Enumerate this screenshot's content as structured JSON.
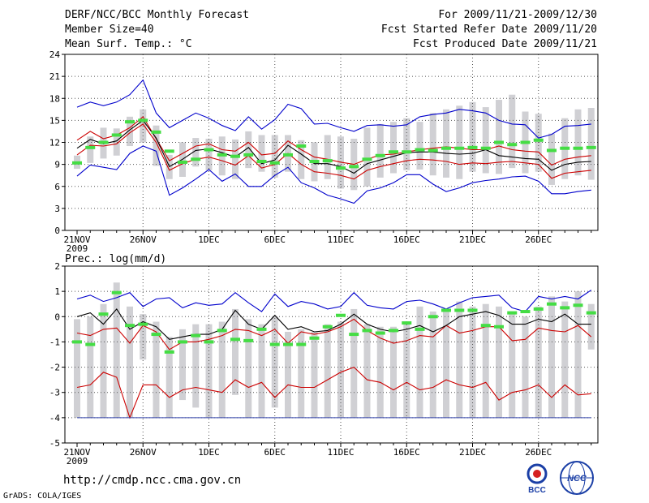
{
  "header": {
    "title": "DERF/NCC/BCC Monthly Forecast",
    "member_size": "Member Size=40",
    "variable_label": "Mean Surf. Temp.: °C",
    "forecast_period": "For 2009/11/21-2009/12/30",
    "fcst_started": "Fcst Started Refer Date 2009/11/20",
    "fcst_produced": "Fcst Produced Date 2009/11/21"
  },
  "footer": {
    "url": "http://cmdp.ncc.cma.gov.cn",
    "grads_credit": "GrADS: COLA/IGES",
    "bcc_logo_text": "BCC",
    "ncc_logo_text": "NCC"
  },
  "colors": {
    "max": "#0000cc",
    "min_pct": "#cc0000",
    "mean": "#000000",
    "obs": "#44dd44",
    "box": "#d0d0d4"
  },
  "chart_data": [
    {
      "type": "line",
      "title": "Mean Surf. Temp.: °C",
      "ylim": [
        0,
        24
      ],
      "yticks": [
        0,
        3,
        6,
        9,
        12,
        15,
        18,
        21,
        24
      ],
      "xtick_labels": [
        "21NOV",
        "26NOV",
        "1DEC",
        "6DEC",
        "11DEC",
        "16DEC",
        "21DEC",
        "26DEC"
      ],
      "xtick_index": [
        0,
        5,
        10,
        15,
        20,
        25,
        30,
        35
      ],
      "x_sublabel": "2009",
      "series": [
        {
          "name": "max",
          "color": "#0000cc",
          "values": [
            16.8,
            17.5,
            17,
            17.5,
            18.5,
            20.5,
            16,
            14,
            15,
            16,
            15.3,
            14.3,
            13.6,
            15.5,
            13.8,
            15.1,
            17.2,
            16.6,
            14.5,
            14.6,
            14,
            13.5,
            14.3,
            14.4,
            14.2,
            14.4,
            15.5,
            15.8,
            16,
            16.5,
            16.3,
            16,
            15,
            14.5,
            14.4,
            12.6,
            13.1,
            14.2,
            14.3,
            14.5
          ]
        },
        {
          "name": "upper",
          "color": "#cc0000",
          "values": [
            12.3,
            13.5,
            12.5,
            13,
            14,
            15.5,
            12.5,
            9.5,
            10.5,
            11.5,
            11.8,
            11,
            10.8,
            12,
            10.3,
            10.5,
            12.2,
            11,
            10,
            9.7,
            9.3,
            9,
            9.7,
            10.3,
            10.4,
            10.7,
            11,
            11.2,
            11.4,
            11.2,
            11,
            11,
            11.5,
            11,
            10.8,
            10.7,
            8.9,
            9.7,
            10,
            10.2
          ]
        },
        {
          "name": "mean",
          "color": "#000000",
          "values": [
            11.2,
            12.4,
            11.8,
            12.2,
            13.7,
            15,
            12.6,
            8.7,
            9.7,
            10.9,
            11.1,
            10.6,
            10,
            11.3,
            9.1,
            9.6,
            11.6,
            10.4,
            9.1,
            9.1,
            8.7,
            7.8,
            9.1,
            9.6,
            10.1,
            10.6,
            10.7,
            10.7,
            10.5,
            10.4,
            10.5,
            11,
            10.2,
            10,
            9.8,
            9.7,
            8.2,
            9,
            9.3,
            9.4
          ]
        },
        {
          "name": "lower",
          "color": "#cc0000",
          "values": [
            10.3,
            11.6,
            11.5,
            11.8,
            13.3,
            14.5,
            12,
            8.2,
            9.1,
            9.7,
            10,
            9.5,
            8.9,
            10.2,
            8.5,
            9,
            10.5,
            9,
            8,
            7.8,
            7.5,
            7,
            8.2,
            8.7,
            9.1,
            9.5,
            9.7,
            9.6,
            9.4,
            9,
            9.2,
            9.1,
            9.3,
            9.4,
            9.2,
            9,
            7.1,
            7.8,
            8,
            8.2
          ]
        },
        {
          "name": "min",
          "color": "#0000cc",
          "values": [
            7.4,
            8.9,
            8.6,
            8.3,
            10.5,
            11.5,
            10.8,
            4.8,
            5.8,
            7,
            8.3,
            6.7,
            7.7,
            6,
            6,
            7.5,
            8.6,
            6.5,
            5.8,
            4.8,
            4.3,
            3.7,
            5.4,
            5.8,
            6.5,
            7.6,
            7.6,
            6.3,
            5.3,
            5.8,
            6.5,
            6.8,
            7,
            7.3,
            7.4,
            6.7,
            5,
            5,
            5.3,
            5.5
          ]
        }
      ],
      "boxes": [
        [
          8.4,
          10.2
        ],
        [
          9.2,
          12.8
        ],
        [
          9.8,
          14
        ],
        [
          10.2,
          13.9
        ],
        [
          11.5,
          15.5
        ],
        [
          12,
          16.5
        ],
        [
          8.8,
          14.3
        ],
        [
          7,
          10.3
        ],
        [
          7.3,
          12
        ],
        [
          8.7,
          12.6
        ],
        [
          8.2,
          12.5
        ],
        [
          7.5,
          12.8
        ],
        [
          7,
          12.4
        ],
        [
          8.5,
          13.5
        ],
        [
          8,
          13
        ],
        [
          7.2,
          13
        ],
        [
          8,
          13
        ],
        [
          7,
          12.3
        ],
        [
          6.7,
          12
        ],
        [
          7,
          13
        ],
        [
          5.7,
          12.8
        ],
        [
          5.5,
          12.5
        ],
        [
          6,
          14
        ],
        [
          7.2,
          14.5
        ],
        [
          7.8,
          14.8
        ],
        [
          8.2,
          15.3
        ],
        [
          8.3,
          14.8
        ],
        [
          7.5,
          16
        ],
        [
          7.2,
          16.5
        ],
        [
          7,
          17
        ],
        [
          8,
          17.5
        ],
        [
          7.8,
          16.8
        ],
        [
          7.7,
          17.8
        ],
        [
          8.5,
          18.5
        ],
        [
          7.8,
          16.2
        ],
        [
          8,
          15.9
        ],
        [
          6.2,
          13.2
        ],
        [
          7,
          15.3
        ],
        [
          7.5,
          16.5
        ],
        [
          6.9,
          16.7
        ]
      ],
      "obs": [
        9.2,
        11.3,
        12,
        13,
        14.8,
        15,
        13.4,
        10.8,
        9.3,
        9.7,
        11,
        10.3,
        10.1,
        10.3,
        9.4,
        9.2,
        10.3,
        11.5,
        9.4,
        9.5,
        8.5,
        8.7,
        9.7,
        10.2,
        10.7,
        10.7,
        11,
        10.9,
        11.2,
        11.2,
        11.3,
        11.2,
        12,
        11.7,
        12,
        12.3,
        10.9,
        11.2,
        11.2,
        11.3
      ]
    },
    {
      "type": "line",
      "title": "Prec.: log(mm/d)",
      "ylim": [
        -5,
        2
      ],
      "yticks": [
        -5,
        -4,
        -3,
        -2,
        -1,
        0,
        1,
        2
      ],
      "xtick_labels": [
        "21NOV",
        "26NOV",
        "1DEC",
        "6DEC",
        "11DEC",
        "16DEC",
        "21DEC",
        "26DEC"
      ],
      "xtick_index": [
        0,
        5,
        10,
        15,
        20,
        25,
        30,
        35
      ],
      "x_sublabel": "2009",
      "series": [
        {
          "name": "max",
          "color": "#0000cc",
          "values": [
            0.7,
            0.85,
            0.6,
            0.75,
            0.95,
            0.4,
            0.7,
            0.75,
            0.35,
            0.55,
            0.45,
            0.5,
            0.95,
            0.55,
            0.2,
            0.9,
            0.4,
            0.6,
            0.5,
            0.3,
            0.4,
            0.95,
            0.45,
            0.35,
            0.3,
            0.6,
            0.65,
            0.5,
            0.3,
            0.55,
            0.75,
            0.8,
            0.85,
            0.35,
            0.2,
            0.8,
            0.7,
            0.8,
            0.7,
            1.05
          ]
        },
        {
          "name": "upper",
          "color": "#cc0000",
          "values": [
            -0.65,
            -0.75,
            -0.5,
            -0.45,
            -1.05,
            -0.35,
            -0.6,
            -1.3,
            -1.0,
            -1.0,
            -0.9,
            -0.75,
            -0.5,
            -0.55,
            -0.75,
            -0.5,
            -1.05,
            -0.6,
            -0.7,
            -0.6,
            -0.4,
            -0.1,
            -0.55,
            -0.85,
            -1.05,
            -0.95,
            -0.75,
            -0.8,
            -0.35,
            -0.65,
            -0.55,
            -0.4,
            -0.4,
            -0.95,
            -0.9,
            -0.45,
            -0.55,
            -0.6,
            -0.35,
            -0.8
          ]
        },
        {
          "name": "mean",
          "color": "#000000",
          "values": [
            0.0,
            0.15,
            -0.3,
            0.3,
            -0.5,
            -0.2,
            -0.4,
            -0.9,
            -0.8,
            -0.7,
            -0.7,
            -0.5,
            0.25,
            -0.3,
            -0.5,
            0.05,
            -0.5,
            -0.4,
            -0.6,
            -0.55,
            -0.3,
            0.1,
            -0.3,
            -0.5,
            -0.6,
            -0.5,
            -0.35,
            -0.6,
            -0.35,
            0.0,
            0.1,
            0.2,
            0.05,
            -0.3,
            -0.3,
            -0.1,
            -0.2,
            0.1,
            -0.3,
            -0.3
          ]
        },
        {
          "name": "lower",
          "color": "#cc0000",
          "values": [
            -2.8,
            -2.7,
            -2.2,
            -2.4,
            -4.0,
            -2.7,
            -2.7,
            -3.2,
            -2.9,
            -2.8,
            -2.9,
            -3.0,
            -2.5,
            -2.8,
            -2.6,
            -3.2,
            -2.7,
            -2.8,
            -2.8,
            -2.5,
            -2.2,
            -2.0,
            -2.5,
            -2.6,
            -2.9,
            -2.6,
            -2.9,
            -2.8,
            -2.5,
            -2.7,
            -2.8,
            -2.6,
            -3.3,
            -3.0,
            -2.9,
            -2.7,
            -3.2,
            -2.7,
            -3.1,
            -3.05
          ]
        },
        {
          "name": "min",
          "color": "#3344aa",
          "values": [
            -4,
            -4,
            -4,
            -4,
            -4,
            -4,
            -4,
            -4,
            -4,
            -4,
            -4,
            -4,
            -4,
            -4,
            -4,
            -4,
            -4,
            -4,
            -4,
            -4,
            -4,
            -4,
            -4,
            -4,
            -4,
            -4,
            -4,
            -4,
            -4,
            -4,
            -4,
            -4,
            -4,
            -4,
            -4,
            -4,
            -4,
            -4,
            -4,
            -4
          ]
        }
      ],
      "boxes": [
        [
          -4,
          -0.1
        ],
        [
          -4,
          0
        ],
        [
          -4,
          0.5
        ],
        [
          -4,
          1.35
        ],
        [
          -4,
          0.4
        ],
        [
          -1.7,
          0.1
        ],
        [
          -4,
          -0.2
        ],
        [
          -4,
          -0.8
        ],
        [
          -3.3,
          -0.5
        ],
        [
          -3.6,
          -0.3
        ],
        [
          -4,
          -0.3
        ],
        [
          -4,
          -0.2
        ],
        [
          -3.1,
          0.3
        ],
        [
          -4,
          -0.1
        ],
        [
          -4,
          -0.3
        ],
        [
          -3.6,
          0
        ],
        [
          -4,
          -0.6
        ],
        [
          -4,
          -0.5
        ],
        [
          -4,
          -0.6
        ],
        [
          -4,
          -0.3
        ],
        [
          -4,
          -0.2
        ],
        [
          -4,
          0.3
        ],
        [
          -4,
          -0.3
        ],
        [
          -4,
          -0.4
        ],
        [
          -4,
          -0.4
        ],
        [
          -4,
          -0.2
        ],
        [
          -4,
          0.4
        ],
        [
          -4,
          0.2
        ],
        [
          -4,
          0.3
        ],
        [
          -4,
          0.6
        ],
        [
          -4,
          0.4
        ],
        [
          -4,
          0.5
        ],
        [
          -4,
          0.4
        ],
        [
          -4,
          0.2
        ],
        [
          -4,
          0
        ],
        [
          -4,
          0.4
        ],
        [
          -4,
          0.8
        ],
        [
          -4,
          0.6
        ],
        [
          -4,
          1
        ],
        [
          -1.3,
          0.5
        ]
      ],
      "obs": [
        -1.0,
        -1.1,
        0.1,
        0.95,
        -0.35,
        -0.3,
        -0.7,
        -1.4,
        -1.0,
        -0.75,
        -1.0,
        -0.55,
        -0.9,
        -0.95,
        -0.5,
        -1.1,
        -1.1,
        -1.1,
        -0.85,
        -0.4,
        0.05,
        -0.7,
        -0.55,
        -0.65,
        -0.55,
        -0.25,
        -0.5,
        0.0,
        0.25,
        0.25,
        0.25,
        -0.35,
        -0.4,
        0.15,
        0.2,
        0.3,
        0.5,
        0.35,
        0.45,
        0.15
      ]
    }
  ]
}
